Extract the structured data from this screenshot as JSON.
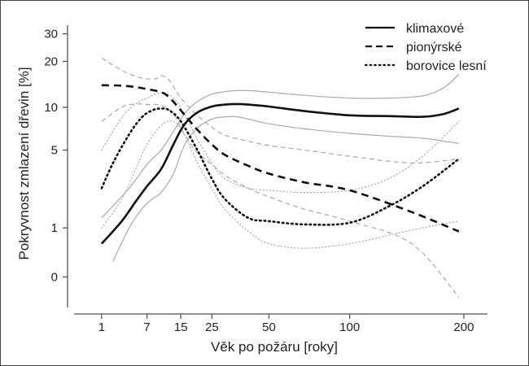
{
  "chart_data": {
    "type": "line",
    "xlabel": "Věk po požáru [roky]",
    "ylabel": "Pokryvnost zmlazení dřevin [%]",
    "x_axis": {
      "scale": "sqrt",
      "ticks": [
        1,
        7,
        15,
        25,
        50,
        100,
        200
      ],
      "range": [
        0,
        225
      ]
    },
    "y_axis": {
      "scale": "log1p",
      "ticks": [
        0,
        1,
        5,
        10,
        20,
        30
      ],
      "range": [
        -0.35,
        34
      ]
    },
    "grid": false,
    "legend": {
      "position": "top-right",
      "entries": [
        {
          "label": "klimaxové",
          "style": "solid"
        },
        {
          "label": "pionýrské",
          "style": "dashed"
        },
        {
          "label": "borovice lesní",
          "style": "dotted"
        }
      ]
    },
    "series": [
      {
        "name": "klimaxové",
        "role": "mean",
        "style": "solid",
        "color": "#111111",
        "x": [
          1,
          3,
          5,
          7,
          10,
          13,
          16,
          20,
          25,
          30,
          35,
          40,
          50,
          70,
          100,
          130,
          160,
          180,
          195
        ],
        "y": [
          0.6,
          1.2,
          1.9,
          2.6,
          3.6,
          5.5,
          7.6,
          9.2,
          10.1,
          10.4,
          10.5,
          10.4,
          10.1,
          9.4,
          8.8,
          8.7,
          8.6,
          9.0,
          9.8
        ]
      },
      {
        "role": "upper",
        "style": "solid",
        "color": "#aaaaaa",
        "x": [
          1,
          4,
          7,
          10,
          13,
          16,
          20,
          25,
          30,
          35,
          40,
          50,
          70,
          100,
          130,
          160,
          180,
          195
        ],
        "y": [
          1.3,
          2.5,
          3.9,
          5.0,
          6.8,
          9.0,
          10.9,
          12.2,
          12.7,
          12.9,
          12.9,
          12.6,
          12.0,
          11.5,
          11.5,
          11.9,
          13.5,
          16.5
        ]
      },
      {
        "role": "lower",
        "style": "solid",
        "color": "#aaaaaa",
        "x": [
          2,
          4,
          6,
          8,
          10,
          13,
          16,
          20,
          25,
          30,
          35,
          40,
          50,
          70,
          100,
          130,
          160,
          180,
          195
        ],
        "y": [
          0.25,
          1.0,
          1.6,
          2.0,
          2.3,
          3.3,
          5.4,
          7.2,
          8.3,
          8.6,
          8.6,
          8.3,
          7.7,
          7.1,
          6.6,
          6.3,
          6.1,
          5.8,
          5.6
        ]
      },
      {
        "name": "pionýrské",
        "role": "mean",
        "style": "dashed",
        "color": "#111111",
        "x": [
          1,
          3,
          5,
          7,
          10,
          12,
          15,
          20,
          25,
          30,
          40,
          50,
          70,
          100,
          150,
          195
        ],
        "y": [
          14.0,
          13.9,
          13.6,
          13.2,
          12.6,
          11.6,
          9.5,
          7.0,
          5.5,
          4.6,
          3.8,
          3.3,
          2.8,
          2.4,
          1.5,
          0.9
        ]
      },
      {
        "role": "upper",
        "style": "dashed",
        "color": "#aaaaaa",
        "x": [
          1,
          3,
          5,
          7,
          9,
          10,
          12,
          15,
          20,
          25,
          30,
          40,
          50,
          70,
          100,
          150,
          195
        ],
        "y": [
          21.0,
          17.5,
          16.0,
          15.4,
          15.5,
          16.2,
          15.0,
          11.5,
          8.8,
          7.3,
          6.4,
          5.8,
          5.4,
          5.0,
          4.5,
          4.0,
          4.3
        ]
      },
      {
        "role": "lower",
        "style": "dashed",
        "color": "#aaaaaa",
        "x": [
          1,
          3,
          5,
          7,
          10,
          13,
          16,
          20,
          25,
          30,
          40,
          50,
          70,
          100,
          150,
          195
        ],
        "y": [
          8.0,
          10.0,
          10.5,
          10.4,
          10.3,
          9.0,
          6.5,
          4.8,
          3.9,
          3.2,
          2.5,
          2.1,
          1.6,
          1.2,
          0.6,
          -0.25
        ]
      },
      {
        "name": "borovice lesní",
        "role": "mean",
        "style": "dotted",
        "color": "#111111",
        "x": [
          1,
          2,
          4,
          6,
          8,
          10,
          12,
          15,
          20,
          25,
          30,
          40,
          50,
          70,
          100,
          130,
          160,
          195
        ],
        "y": [
          2.5,
          4.0,
          6.5,
          8.5,
          9.5,
          9.8,
          9.5,
          8.0,
          5.0,
          3.0,
          2.0,
          1.3,
          1.2,
          1.1,
          1.15,
          1.7,
          2.6,
          4.3
        ]
      },
      {
        "role": "upper",
        "style": "dotted",
        "color": "#aaaaaa",
        "x": [
          1,
          3,
          5,
          7,
          10,
          13,
          16,
          20,
          25,
          30,
          40,
          50,
          70,
          100,
          130,
          160,
          195
        ],
        "y": [
          5.0,
          8.5,
          10.5,
          11.5,
          12.5,
          11.5,
          9.0,
          6.0,
          4.0,
          3.0,
          2.5,
          2.4,
          2.3,
          2.4,
          3.0,
          4.5,
          8.0
        ]
      },
      {
        "role": "lower",
        "style": "dotted",
        "color": "#aaaaaa",
        "x": [
          1,
          3,
          5,
          7,
          10,
          13,
          16,
          20,
          25,
          30,
          40,
          50,
          70,
          100,
          130,
          160,
          195
        ],
        "y": [
          1.0,
          2.0,
          3.6,
          5.5,
          7.5,
          8.0,
          6.5,
          4.0,
          2.5,
          1.6,
          0.9,
          0.6,
          0.5,
          0.6,
          0.8,
          1.0,
          1.2
        ]
      }
    ]
  }
}
